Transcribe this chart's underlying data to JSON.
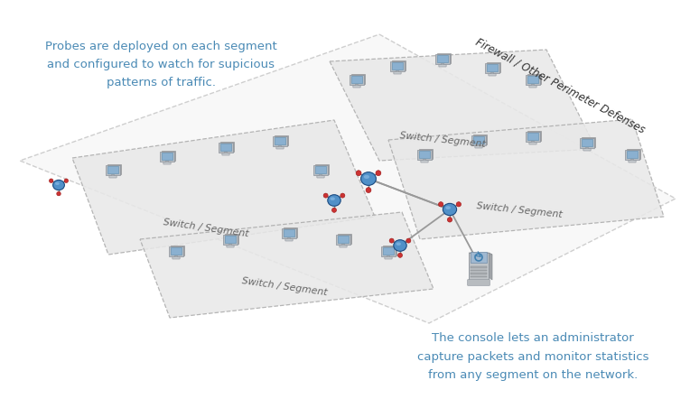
{
  "bg_color": "#ffffff",
  "text_color": "#4a8ab5",
  "segment_fill": "#e8e8e8",
  "segment_edge": "#aaaaaa",
  "left_annotation": "Probes are deployed on each segment\nand configured to watch for supicious\npatterns of traffic.",
  "right_annotation": "The console lets an administrator\ncapture packets and monitor statistics\nfrom any segment on the network.",
  "firewall_label": "Firewall / Other Perimeter Defenses",
  "switch_label": "Switch / Segment",
  "probe_color": "#3a7ab5",
  "probe_edge": "#1a4a80",
  "line_color": "#999999",
  "computer_body": "#b8bec4",
  "computer_screen": "#8ab0d0",
  "computer_base": "#c8ccd0",
  "red_dot": "#cc3333",
  "server_body": "#c0c4c8",
  "server_screen": "#a0b8d0",
  "outer_fill": "#f4f4f4",
  "segment_label_color": "#666666",
  "firewall_color": "#333333"
}
